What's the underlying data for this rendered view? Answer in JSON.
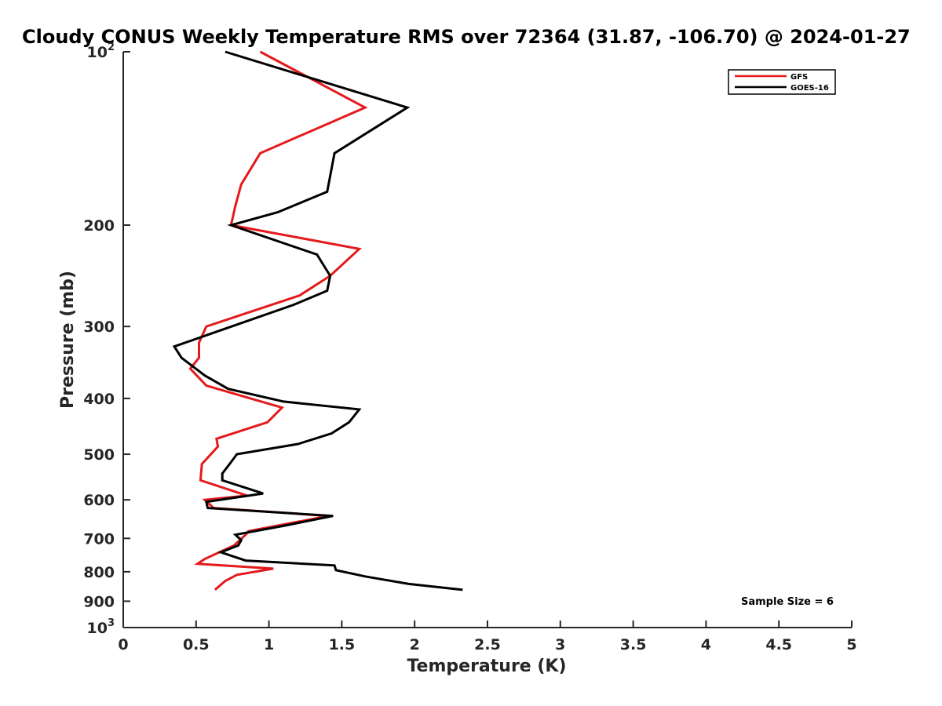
{
  "chart_data": {
    "type": "line",
    "title": "Cloudy CONUS Weekly Temperature RMS over 72364 (31.87, -106.70) @ 2024-01-27",
    "xlabel": "Temperature (K)",
    "ylabel": "Pressure (mb)",
    "xlim": [
      0,
      5
    ],
    "ylim": [
      100,
      1000
    ],
    "y_scale": "log",
    "y_reversed": true,
    "grid": false,
    "legend_position": "top-right",
    "x_ticks": [
      "0",
      "0.5",
      "1",
      "1.5",
      "2",
      "2.5",
      "3",
      "3.5",
      "4",
      "4.5",
      "5"
    ],
    "y_ticks": [
      {
        "value": 100,
        "base": "10",
        "exp": "2"
      },
      {
        "value": 200,
        "label": "200"
      },
      {
        "value": 300,
        "label": "300"
      },
      {
        "value": 400,
        "label": "400"
      },
      {
        "value": 500,
        "label": "500"
      },
      {
        "value": 600,
        "label": "600"
      },
      {
        "value": 700,
        "label": "700"
      },
      {
        "value": 800,
        "label": "800"
      },
      {
        "value": 900,
        "label": "900"
      },
      {
        "value": 1000,
        "base": "10",
        "exp": "3"
      }
    ],
    "annotation": "Sample Size = 6",
    "series": [
      {
        "name": "GFS",
        "color": "#e41a1c",
        "points": [
          [
            0.94,
            100
          ],
          [
            1.66,
            125
          ],
          [
            0.94,
            150
          ],
          [
            0.81,
            170
          ],
          [
            0.77,
            185
          ],
          [
            0.74,
            200
          ],
          [
            1.62,
            220
          ],
          [
            1.42,
            245
          ],
          [
            1.21,
            265
          ],
          [
            0.57,
            300
          ],
          [
            0.52,
            320
          ],
          [
            0.52,
            340
          ],
          [
            0.46,
            355
          ],
          [
            0.57,
            380
          ],
          [
            1.09,
            415
          ],
          [
            0.99,
            440
          ],
          [
            0.64,
            470
          ],
          [
            0.65,
            485
          ],
          [
            0.54,
            520
          ],
          [
            0.53,
            555
          ],
          [
            0.85,
            590
          ],
          [
            0.56,
            600
          ],
          [
            0.62,
            620
          ],
          [
            1.41,
            640
          ],
          [
            0.86,
            680
          ],
          [
            0.84,
            690
          ],
          [
            0.76,
            720
          ],
          [
            0.56,
            760
          ],
          [
            0.51,
            775
          ],
          [
            1.03,
            790
          ],
          [
            0.78,
            810
          ],
          [
            0.7,
            830
          ],
          [
            0.63,
            860
          ]
        ]
      },
      {
        "name": "GOES-16",
        "color": "#000000",
        "points": [
          [
            0.7,
            100
          ],
          [
            1.95,
            125
          ],
          [
            1.45,
            150
          ],
          [
            1.4,
            175
          ],
          [
            1.06,
            190
          ],
          [
            0.74,
            200
          ],
          [
            1.33,
            225
          ],
          [
            1.42,
            245
          ],
          [
            1.4,
            260
          ],
          [
            1.17,
            275
          ],
          [
            0.35,
            325
          ],
          [
            0.4,
            340
          ],
          [
            0.56,
            365
          ],
          [
            0.72,
            385
          ],
          [
            1.1,
            405
          ],
          [
            1.62,
            418
          ],
          [
            1.55,
            440
          ],
          [
            1.43,
            460
          ],
          [
            1.2,
            480
          ],
          [
            0.78,
            500
          ],
          [
            0.73,
            520
          ],
          [
            0.68,
            540
          ],
          [
            0.68,
            555
          ],
          [
            0.96,
            585
          ],
          [
            0.57,
            605
          ],
          [
            0.58,
            620
          ],
          [
            1.44,
            640
          ],
          [
            1.11,
            665
          ],
          [
            0.77,
            690
          ],
          [
            0.81,
            705
          ],
          [
            0.79,
            720
          ],
          [
            0.67,
            740
          ],
          [
            0.84,
            765
          ],
          [
            1.45,
            780
          ],
          [
            1.46,
            795
          ],
          [
            1.66,
            815
          ],
          [
            1.96,
            840
          ],
          [
            2.33,
            860
          ]
        ]
      }
    ]
  }
}
